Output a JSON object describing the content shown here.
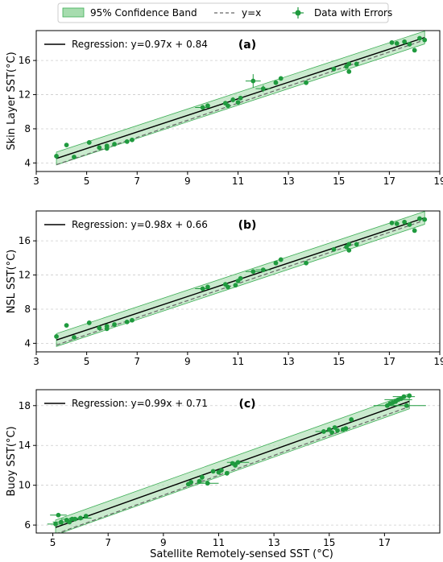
{
  "legend": {
    "band_label": "95% Confidence Band",
    "identity_label": "y=x",
    "data_label": "Data with Errors"
  },
  "colors": {
    "band_fill": "#a6dcae",
    "band_edge": "#3fae57",
    "points": "#1f9a3e",
    "regression": "#000000",
    "identity": "#666666",
    "grid": "#cccccc"
  },
  "xlabel": "Satellite Remotely-sensed SST (°C)",
  "chart_data": [
    {
      "type": "scatter",
      "panel_label": "(a)",
      "ylabel": "Skin Layer SST(°C)",
      "regression_text": "Regression: y=0.97x + 0.84",
      "regression": {
        "slope": 0.97,
        "intercept": 0.84
      },
      "xlim": [
        3,
        19
      ],
      "ylim": [
        3,
        19.5
      ],
      "xticks": [
        3,
        5,
        7,
        9,
        11,
        13,
        15,
        17,
        19
      ],
      "yticks": [
        4,
        8,
        12,
        16
      ],
      "grid": true,
      "points": [
        {
          "x": 3.8,
          "y": 4.8
        },
        {
          "x": 4.2,
          "y": 6.1
        },
        {
          "x": 4.5,
          "y": 4.7
        },
        {
          "x": 5.1,
          "y": 6.4
        },
        {
          "x": 5.5,
          "y": 5.8
        },
        {
          "x": 5.8,
          "y": 6.0
        },
        {
          "x": 5.8,
          "y": 5.7
        },
        {
          "x": 6.1,
          "y": 6.2
        },
        {
          "x": 6.6,
          "y": 6.5
        },
        {
          "x": 6.8,
          "y": 6.7
        },
        {
          "x": 9.6,
          "y": 10.5,
          "xerr": 0.3
        },
        {
          "x": 9.8,
          "y": 10.7
        },
        {
          "x": 10.5,
          "y": 11.0
        },
        {
          "x": 10.6,
          "y": 10.7
        },
        {
          "x": 10.8,
          "y": 11.4,
          "yerr": 0.3
        },
        {
          "x": 11.0,
          "y": 11.1
        },
        {
          "x": 11.1,
          "y": 11.6
        },
        {
          "x": 11.6,
          "y": 13.6,
          "xerr": 0.3,
          "yerr": 0.8
        },
        {
          "x": 12.0,
          "y": 12.7,
          "xerr": 0.3,
          "yerr": 0.4
        },
        {
          "x": 12.5,
          "y": 13.4
        },
        {
          "x": 12.7,
          "y": 13.9
        },
        {
          "x": 13.7,
          "y": 13.4
        },
        {
          "x": 14.8,
          "y": 15.0
        },
        {
          "x": 15.3,
          "y": 15.3
        },
        {
          "x": 15.4,
          "y": 14.7
        },
        {
          "x": 15.4,
          "y": 15.6
        },
        {
          "x": 15.7,
          "y": 15.6
        },
        {
          "x": 17.1,
          "y": 18.1
        },
        {
          "x": 17.3,
          "y": 18.0
        },
        {
          "x": 17.6,
          "y": 18.2
        },
        {
          "x": 17.8,
          "y": 17.9
        },
        {
          "x": 18.0,
          "y": 17.2
        },
        {
          "x": 18.2,
          "y": 18.6
        },
        {
          "x": 18.4,
          "y": 18.4
        }
      ]
    },
    {
      "type": "scatter",
      "panel_label": "(b)",
      "ylabel": "NSL SST(°C)",
      "regression_text": "Regression: y=0.98x + 0.66",
      "regression": {
        "slope": 0.98,
        "intercept": 0.66
      },
      "xlim": [
        3,
        19
      ],
      "ylim": [
        3,
        19.5
      ],
      "xticks": [
        3,
        5,
        7,
        9,
        11,
        13,
        15,
        17,
        19
      ],
      "yticks": [
        4,
        8,
        12,
        16
      ],
      "grid": true,
      "points": [
        {
          "x": 3.8,
          "y": 4.8
        },
        {
          "x": 4.2,
          "y": 6.1
        },
        {
          "x": 4.5,
          "y": 4.7
        },
        {
          "x": 5.1,
          "y": 6.4
        },
        {
          "x": 5.5,
          "y": 5.8
        },
        {
          "x": 5.8,
          "y": 6.0
        },
        {
          "x": 5.8,
          "y": 5.7
        },
        {
          "x": 6.1,
          "y": 6.2
        },
        {
          "x": 6.6,
          "y": 6.5
        },
        {
          "x": 6.8,
          "y": 6.7
        },
        {
          "x": 9.6,
          "y": 10.4,
          "xerr": 0.3
        },
        {
          "x": 9.8,
          "y": 10.6
        },
        {
          "x": 10.5,
          "y": 10.9
        },
        {
          "x": 10.6,
          "y": 10.6
        },
        {
          "x": 10.9,
          "y": 10.8
        },
        {
          "x": 11.0,
          "y": 11.3
        },
        {
          "x": 11.1,
          "y": 11.6
        },
        {
          "x": 11.6,
          "y": 12.4,
          "xerr": 0.3
        },
        {
          "x": 12.0,
          "y": 12.6,
          "xerr": 0.3
        },
        {
          "x": 12.5,
          "y": 13.4
        },
        {
          "x": 12.7,
          "y": 13.8
        },
        {
          "x": 13.7,
          "y": 13.4
        },
        {
          "x": 14.8,
          "y": 15.0
        },
        {
          "x": 15.3,
          "y": 15.3
        },
        {
          "x": 15.4,
          "y": 14.9
        },
        {
          "x": 15.4,
          "y": 15.6
        },
        {
          "x": 15.7,
          "y": 15.6
        },
        {
          "x": 17.1,
          "y": 18.1
        },
        {
          "x": 17.3,
          "y": 18.0
        },
        {
          "x": 17.6,
          "y": 18.2
        },
        {
          "x": 17.8,
          "y": 17.9
        },
        {
          "x": 18.0,
          "y": 17.2
        },
        {
          "x": 18.2,
          "y": 18.6
        },
        {
          "x": 18.4,
          "y": 18.5
        }
      ]
    },
    {
      "type": "scatter",
      "panel_label": "(c)",
      "ylabel": "Buoy SST(°C)",
      "regression_text": "Regression: y=0.99x + 0.71",
      "regression": {
        "slope": 0.99,
        "intercept": 0.71
      },
      "xlim": [
        4.4,
        19
      ],
      "ylim": [
        5.2,
        19.6
      ],
      "xticks": [
        5,
        7,
        9,
        11,
        13,
        15,
        17
      ],
      "yticks": [
        6,
        10,
        14,
        18
      ],
      "grid": true,
      "points": [
        {
          "x": 5.1,
          "y": 6.1,
          "xerr": 0.3
        },
        {
          "x": 5.2,
          "y": 7.0,
          "xerr": 0.3
        },
        {
          "x": 5.3,
          "y": 6.3,
          "xerr": 0.3
        },
        {
          "x": 5.5,
          "y": 6.5
        },
        {
          "x": 5.6,
          "y": 6.3
        },
        {
          "x": 5.7,
          "y": 6.6,
          "xerr": 0.4
        },
        {
          "x": 5.8,
          "y": 6.6
        },
        {
          "x": 6.0,
          "y": 6.7,
          "xerr": 0.4
        },
        {
          "x": 6.2,
          "y": 6.9
        },
        {
          "x": 9.9,
          "y": 10.1
        },
        {
          "x": 10.0,
          "y": 10.3
        },
        {
          "x": 10.3,
          "y": 10.4
        },
        {
          "x": 10.4,
          "y": 10.8,
          "yerr": 0.3
        },
        {
          "x": 10.6,
          "y": 10.2,
          "xerr": 0.4
        },
        {
          "x": 10.8,
          "y": 11.4
        },
        {
          "x": 11.0,
          "y": 11.3
        },
        {
          "x": 11.1,
          "y": 11.5
        },
        {
          "x": 11.3,
          "y": 11.2
        },
        {
          "x": 11.5,
          "y": 12.2
        },
        {
          "x": 11.6,
          "y": 12.0
        },
        {
          "x": 11.7,
          "y": 12.3,
          "xerr": 0.4
        },
        {
          "x": 14.8,
          "y": 15.4,
          "xerr": 0.3
        },
        {
          "x": 15.0,
          "y": 15.6
        },
        {
          "x": 15.1,
          "y": 15.3
        },
        {
          "x": 15.2,
          "y": 15.8
        },
        {
          "x": 15.3,
          "y": 15.5
        },
        {
          "x": 15.5,
          "y": 15.6
        },
        {
          "x": 15.6,
          "y": 15.7
        },
        {
          "x": 15.8,
          "y": 16.6
        },
        {
          "x": 17.1,
          "y": 18.0,
          "xerr": 0.5
        },
        {
          "x": 17.2,
          "y": 18.2
        },
        {
          "x": 17.3,
          "y": 18.3
        },
        {
          "x": 17.4,
          "y": 18.4
        },
        {
          "x": 17.5,
          "y": 18.6,
          "xerr": 0.5
        },
        {
          "x": 17.6,
          "y": 18.7
        },
        {
          "x": 17.7,
          "y": 18.9,
          "xerr": 0.4
        },
        {
          "x": 17.8,
          "y": 18.0,
          "xerr": 0.7
        },
        {
          "x": 17.9,
          "y": 19.0
        }
      ]
    }
  ]
}
